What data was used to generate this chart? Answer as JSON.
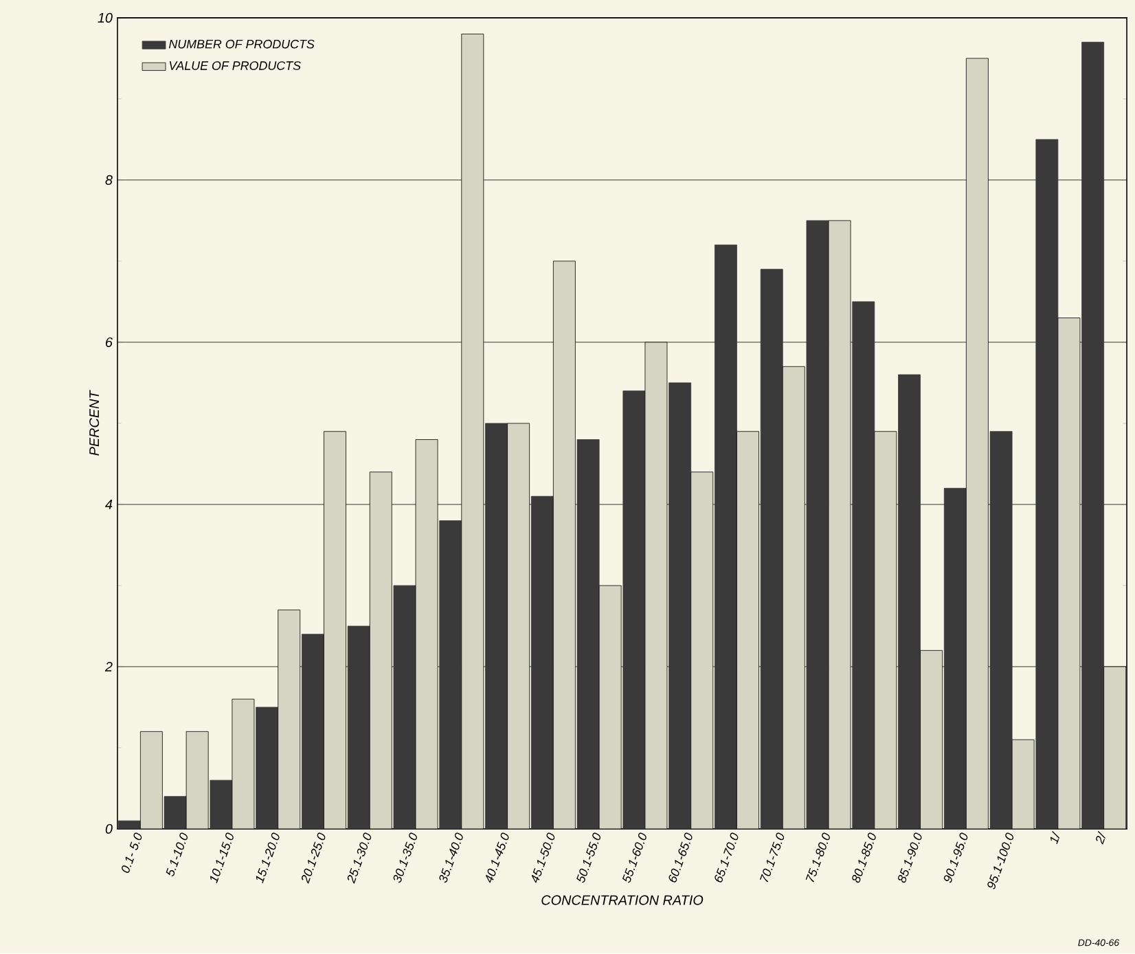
{
  "chart_data": {
    "type": "bar",
    "xlabel": "CONCENTRATION RATIO",
    "ylabel": "PERCENT",
    "categories": [
      "0.1- 5.0",
      "5.1-10.0",
      "10.1-15.0",
      "15.1-20.0",
      "20.1-25.0",
      "25.1-30.0",
      "30.1-35.0",
      "35.1-40.0",
      "40.1-45.0",
      "45.1-50.0",
      "50.1-55.0",
      "55.1-60.0",
      "60.1-65.0",
      "65.1-70.0",
      "70.1-75.0",
      "75.1-80.0",
      "80.1-85.0",
      "85.1-90.0",
      "90.1-95.0",
      "95.1-100.0",
      "1/",
      "2/"
    ],
    "series": [
      {
        "name": "NUMBER OF PRODUCTS",
        "color": "#3a3a3a",
        "values": [
          0.1,
          0.4,
          0.6,
          1.5,
          2.4,
          2.5,
          3.0,
          3.8,
          5.0,
          4.1,
          4.8,
          5.4,
          5.5,
          7.2,
          6.9,
          7.5,
          6.5,
          5.6,
          4.2,
          4.9,
          8.5,
          9.7
        ]
      },
      {
        "name": "VALUE OF PRODUCTS",
        "color": "#d6d4c2",
        "values": [
          1.2,
          1.2,
          1.6,
          2.7,
          4.9,
          4.4,
          4.8,
          9.8,
          5.0,
          7.0,
          3.0,
          6.0,
          4.4,
          4.9,
          5.7,
          7.5,
          4.9,
          2.2,
          9.5,
          1.1,
          6.3,
          2.0
        ]
      }
    ],
    "ylim": [
      0,
      10
    ],
    "yticks": [
      0,
      2,
      4,
      6,
      8,
      10
    ],
    "grid": "y",
    "legend": "top left",
    "annotations": [
      "DD-40-66"
    ]
  }
}
